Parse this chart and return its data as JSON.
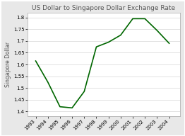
{
  "title": "US Dollar to Singapore Dollar Exchange Rate",
  "ylabel": "Singapore Dollar",
  "years": [
    1993,
    1994,
    1995,
    1996,
    1997,
    1998,
    1999,
    2000,
    2001,
    2002,
    2003,
    2004
  ],
  "values": [
    1.615,
    1.525,
    1.42,
    1.415,
    1.485,
    1.675,
    1.695,
    1.725,
    1.795,
    1.795,
    1.745,
    1.69
  ],
  "ylim": [
    1.38,
    1.82
  ],
  "yticks": [
    1.4,
    1.45,
    1.5,
    1.55,
    1.6,
    1.65,
    1.7,
    1.75,
    1.8
  ],
  "ytick_labels": [
    "1.4",
    "1.45",
    "1.5",
    "1.55",
    "1.6",
    "1.65",
    "1.7",
    "1.75",
    "1.8"
  ],
  "line_color": "#006600",
  "fig_bg_color": "#e8e8e8",
  "plot_bg_color": "#ffffff",
  "grid_color": "#cccccc",
  "border_color": "#aaaaaa",
  "title_fontsize": 6.5,
  "label_fontsize": 5.5,
  "tick_fontsize": 5.0,
  "linewidth": 1.2
}
